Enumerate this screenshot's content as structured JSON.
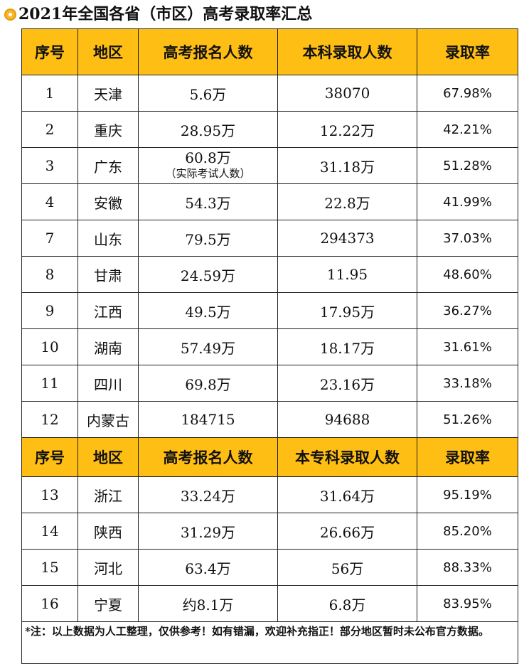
{
  "title": "2021年全国各省（市区）高考录取率汇总",
  "header1": {
    "col1": "序号",
    "col2": "地区",
    "col3": "高考报名人数",
    "col4": "本科录取人数",
    "col5": "录取率"
  },
  "rows1": [
    {
      "no": "1",
      "region": "天津",
      "applicants": "5.6万",
      "admitted": "38070",
      "rate": "67.98%"
    },
    {
      "no": "2",
      "region": "重庆",
      "applicants": "28.95万",
      "admitted": "12.22万",
      "rate": "42.21%"
    },
    {
      "no": "3",
      "region": "广东",
      "applicants": "60.8万",
      "applicants_note": "（实际考试人数）",
      "admitted": "31.18万",
      "rate": "51.28%"
    },
    {
      "no": "4",
      "region": "安徽",
      "applicants": "54.3万",
      "admitted": "22.8万",
      "rate": "41.99%"
    },
    {
      "no": "7",
      "region": "山东",
      "applicants": "79.5万",
      "admitted": "294373",
      "rate": "37.03%"
    },
    {
      "no": "8",
      "region": "甘肃",
      "applicants": "24.59万",
      "admitted": "11.95",
      "rate": "48.60%"
    },
    {
      "no": "9",
      "region": "江西",
      "applicants": "49.5万",
      "admitted": "17.95万",
      "rate": "36.27%"
    },
    {
      "no": "10",
      "region": "湖南",
      "applicants": "57.49万",
      "admitted": "18.17万",
      "rate": "31.61%"
    },
    {
      "no": "11",
      "region": "四川",
      "applicants": "69.8万",
      "admitted": "23.16万",
      "rate": "33.18%"
    },
    {
      "no": "12",
      "region": "内蒙古",
      "applicants": "184715",
      "admitted": "94688",
      "rate": "51.26%"
    }
  ],
  "header2": {
    "col1": "序号",
    "col2": "地区",
    "col3": "高考报名人数",
    "col4": "本专科录取人数",
    "col5": "录取率"
  },
  "rows2": [
    {
      "no": "13",
      "region": "浙江",
      "applicants": "33.24万",
      "admitted": "31.64万",
      "rate": "95.19%"
    },
    {
      "no": "14",
      "region": "陕西",
      "applicants": "31.29万",
      "admitted": "26.66万",
      "rate": "85.20%"
    },
    {
      "no": "15",
      "region": "河北",
      "applicants": "63.4万",
      "admitted": "56万",
      "rate": "88.33%"
    },
    {
      "no": "16",
      "region": "宁夏",
      "applicants": "约8.1万",
      "admitted": "6.8万",
      "rate": "83.95%"
    }
  ],
  "note": "*注：以上数据为人工整理，仅供参考！如有错漏，欢迎补充指正！部分地区暂时未公布官方数据。",
  "colors": {
    "header_bg": "#ffbe14",
    "border": "#222222",
    "title_mark": "#f7b731"
  }
}
